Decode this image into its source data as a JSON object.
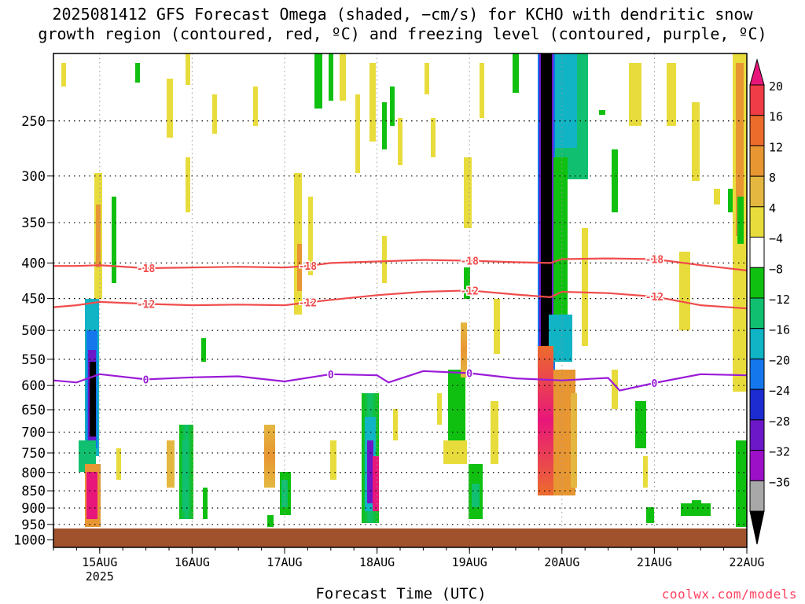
{
  "title_line1": "2025081412 GFS Forecast Omega (shaded, −cm/s) for KCHO with dendritic snow",
  "title_line2": "growth region (contoured, red, ºC) and freezing level (contoured, purple, ºC)",
  "xlabel": "Forecast Time (UTC)",
  "credit": "coolwx.com/models",
  "chart_data": {
    "type": "heatmap",
    "title": "2025081412 GFS Forecast Omega (shaded, −cm/s) for KCHO with dendritic snow growth region (contoured, red, ºC) and freezing level (contoured, purple, ºC)",
    "xlabel": "Forecast Time (UTC)",
    "ylabel": "",
    "y_scale": "log-pressure",
    "y_reversed": true,
    "ylim": [
      1025,
      200
    ],
    "y_ticks": [
      250,
      300,
      350,
      400,
      450,
      500,
      550,
      600,
      650,
      700,
      750,
      800,
      850,
      900,
      950,
      1000
    ],
    "x_range": [
      "2025-08-14T12",
      "2025-08-22T00"
    ],
    "x_ticks": [
      {
        "t": "2025-08-15T00",
        "label": "15AUG",
        "sub": "2025"
      },
      {
        "t": "2025-08-16T00",
        "label": "16AUG"
      },
      {
        "t": "2025-08-17T00",
        "label": "17AUG"
      },
      {
        "t": "2025-08-18T00",
        "label": "18AUG"
      },
      {
        "t": "2025-08-19T00",
        "label": "19AUG"
      },
      {
        "t": "2025-08-20T00",
        "label": "20AUG"
      },
      {
        "t": "2025-08-21T00",
        "label": "21AUG"
      },
      {
        "t": "2025-08-22T00",
        "label": "22AUG"
      }
    ],
    "grid": true,
    "colorbar": {
      "ticks": [
        "20",
        "16",
        "12",
        "8",
        "4",
        "−4",
        "−8",
        "−12",
        "−16",
        "−20",
        "−24",
        "−28",
        "−32",
        "−36"
      ],
      "colors": [
        "#e8167a",
        "#f03c46",
        "#ec6c2c",
        "#e89632",
        "#e4b840",
        "#e8dc3c",
        "#ffffff",
        "#10c010",
        "#10c070",
        "#10b4c4",
        "#1478ec",
        "#1c2cd0",
        "#6c18c8",
        "#9c10c8",
        "#a8a8a8",
        "#000000"
      ]
    },
    "contours": [
      {
        "name": "-18",
        "color": "#f04c4c",
        "x": [
          "2025-08-14T12",
          "2025-08-14T18",
          "2025-08-15T00",
          "2025-08-15T12",
          "2025-08-16T00",
          "2025-08-16T12",
          "2025-08-17T00",
          "2025-08-17T06",
          "2025-08-17T12",
          "2025-08-18T00",
          "2025-08-18T12",
          "2025-08-19T00",
          "2025-08-19T12",
          "2025-08-19T21",
          "2025-08-20T00",
          "2025-08-20T12",
          "2025-08-21T00",
          "2025-08-21T12",
          "2025-08-22T00"
        ],
        "y": [
          404,
          404,
          403,
          407,
          406,
          405,
          406,
          404,
          400,
          398,
          396,
          397,
          399,
          400,
          395,
          394,
          395,
          403,
          410
        ]
      },
      {
        "name": "-12",
        "color": "#f04c4c",
        "x": [
          "2025-08-14T12",
          "2025-08-14T18",
          "2025-08-15T00",
          "2025-08-15T12",
          "2025-08-16T00",
          "2025-08-16T12",
          "2025-08-17T00",
          "2025-08-17T06",
          "2025-08-17T12",
          "2025-08-18T00",
          "2025-08-18T12",
          "2025-08-19T00",
          "2025-08-19T12",
          "2025-08-19T21",
          "2025-08-20T00",
          "2025-08-20T12",
          "2025-08-21T00",
          "2025-08-21T12",
          "2025-08-22T00"
        ],
        "y": [
          463,
          460,
          455,
          458,
          460,
          459,
          460,
          456,
          452,
          445,
          440,
          438,
          444,
          448,
          440,
          442,
          447,
          460,
          465
        ]
      },
      {
        "name": "0",
        "color": "#9a1ad8",
        "x": [
          "2025-08-14T12",
          "2025-08-14T18",
          "2025-08-15T00",
          "2025-08-15T12",
          "2025-08-16T00",
          "2025-08-16T12",
          "2025-08-17T00",
          "2025-08-17T12",
          "2025-08-18T00",
          "2025-08-18T03",
          "2025-08-18T12",
          "2025-08-19T00",
          "2025-08-19T12",
          "2025-08-20T00",
          "2025-08-20T12",
          "2025-08-20T15",
          "2025-08-21T00",
          "2025-08-21T12",
          "2025-08-22T00"
        ],
        "y": [
          590,
          594,
          578,
          588,
          584,
          582,
          592,
          578,
          580,
          594,
          572,
          576,
          586,
          590,
          585,
          610,
          595,
          578,
          580
        ]
      }
    ]
  }
}
